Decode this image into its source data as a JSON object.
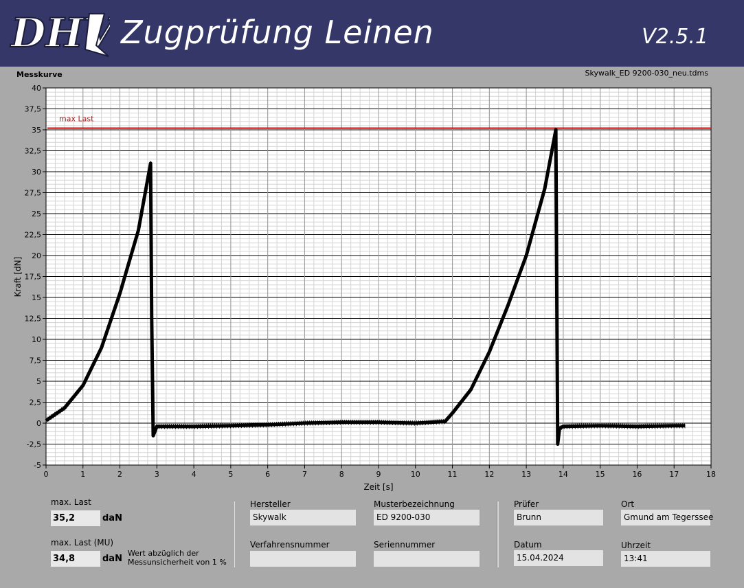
{
  "header": {
    "logo_text": "DHV",
    "title": "Zugprüfung Leinen",
    "version": "V2.5.1"
  },
  "panel": {
    "label": "Messkurve",
    "file_name": "Skywalk_ED 9200-030_neu.tdms"
  },
  "chart_data": {
    "type": "line",
    "xlabel": "Zeit [s]",
    "ylabel": "Kraft [dN]",
    "xlim": [
      0,
      18
    ],
    "ylim": [
      -5,
      40
    ],
    "x_ticks": [
      "0",
      "1",
      "2",
      "3",
      "4",
      "5",
      "6",
      "7",
      "8",
      "9",
      "10",
      "11",
      "12",
      "13",
      "14",
      "15",
      "16",
      "17",
      "18"
    ],
    "y_ticks": [
      "40",
      "37,5",
      "35",
      "32,5",
      "30",
      "27,5",
      "25",
      "22,5",
      "20",
      "17,5",
      "15",
      "12,5",
      "10",
      "7,5",
      "5",
      "2,5",
      "0",
      "-2,5",
      "-5"
    ],
    "reference_line": {
      "label": "max Last",
      "y": 35.2,
      "color": "#cc1111"
    },
    "series": [
      {
        "color": "#000000",
        "x": [
          0,
          0.5,
          1,
          1.5,
          2,
          2.5,
          2.83,
          2.86,
          2.9,
          3,
          4,
          5,
          6,
          7,
          8,
          9,
          10,
          10.8,
          11,
          11.5,
          12,
          12.5,
          13,
          13.5,
          13.8,
          13.85,
          13.9,
          14,
          15,
          16,
          17,
          17.3
        ],
        "y": [
          0.3,
          1.8,
          4.5,
          9,
          15.5,
          23,
          31,
          12.5,
          -1.5,
          -0.4,
          -0.4,
          -0.3,
          -0.2,
          0,
          0.1,
          0.1,
          0,
          0.2,
          1.2,
          4,
          8.5,
          14,
          20,
          28,
          35,
          -2.5,
          -0.6,
          -0.4,
          -0.3,
          -0.4,
          -0.3,
          -0.3
        ]
      }
    ],
    "grid": true
  },
  "info": {
    "max_last_label": "max. Last",
    "max_last_value": "35,2",
    "max_last_mu_label": "max. Last (MU)",
    "max_last_mu_value": "34,8",
    "unit": "daN",
    "note_line1": "Wert abzüglich der",
    "note_line2": "Messunsicherheit von 1 %",
    "hersteller_label": "Hersteller",
    "hersteller_value": "Skywalk",
    "muster_label": "Musterbezeichnung",
    "muster_value": "ED 9200-030",
    "verfahren_label": "Verfahrensnummer",
    "verfahren_value": "",
    "serien_label": "Seriennummer",
    "serien_value": "",
    "pruefer_label": "Prüfer",
    "pruefer_value": "Brunn",
    "ort_label": "Ort",
    "ort_value": "Gmund am Tegerssee",
    "datum_label": "Datum",
    "datum_value": "15.04.2024",
    "uhrzeit_label": "Uhrzeit",
    "uhrzeit_value": "13:41"
  }
}
